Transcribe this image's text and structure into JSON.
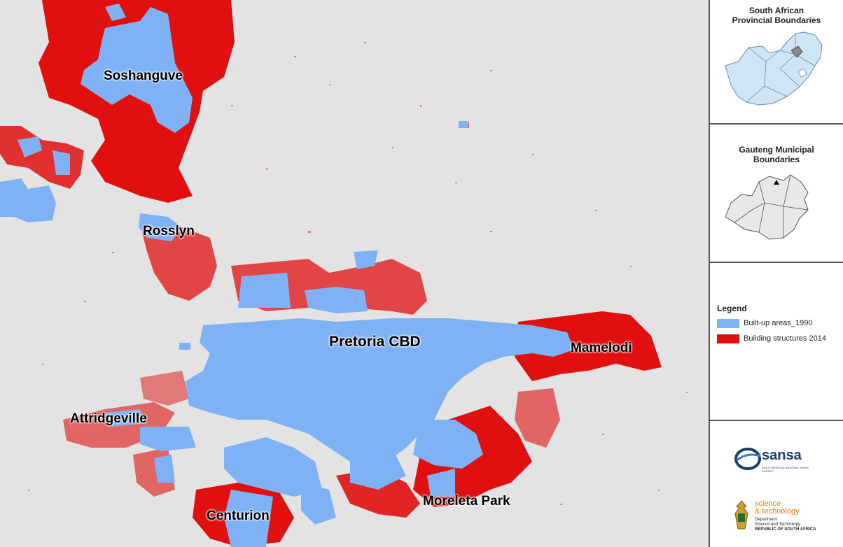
{
  "map": {
    "labels": [
      {
        "id": "soshanguve",
        "text": "Soshanguve"
      },
      {
        "id": "rosslyn",
        "text": "Rosslyn"
      },
      {
        "id": "pretoria-cbd",
        "text": "Pretoria CBD"
      },
      {
        "id": "mamelodi",
        "text": "Mamelodi"
      },
      {
        "id": "attridgeville",
        "text": "Attridgeville"
      },
      {
        "id": "centurion",
        "text": "Centurion"
      },
      {
        "id": "moreleta-park",
        "text": "Moreleta Park"
      }
    ],
    "colors": {
      "background": "#e3e3e3",
      "built_up_1990": "#7fb2f5",
      "building_2014": "#e01010"
    }
  },
  "inset_provincial": {
    "title": "South African Provincial Boundaries"
  },
  "inset_gauteng": {
    "title": "Gauteng Municipal Boundaries"
  },
  "legend": {
    "title": "Legend",
    "items": [
      {
        "label": "Built-up areas_1990",
        "color": "#7fb2f5"
      },
      {
        "label": "Building structures 2014",
        "color": "#e01010"
      }
    ]
  },
  "logos": {
    "sansa": {
      "name": "sansa",
      "subtitle": "SOUTH AFRICAN NATIONAL SPACE AGENCY"
    },
    "dst": {
      "line1": "science",
      "line2": "& technology",
      "line3": "Department:",
      "line4": "Science and Technology",
      "line5": "REPUBLIC OF SOUTH AFRICA"
    }
  }
}
